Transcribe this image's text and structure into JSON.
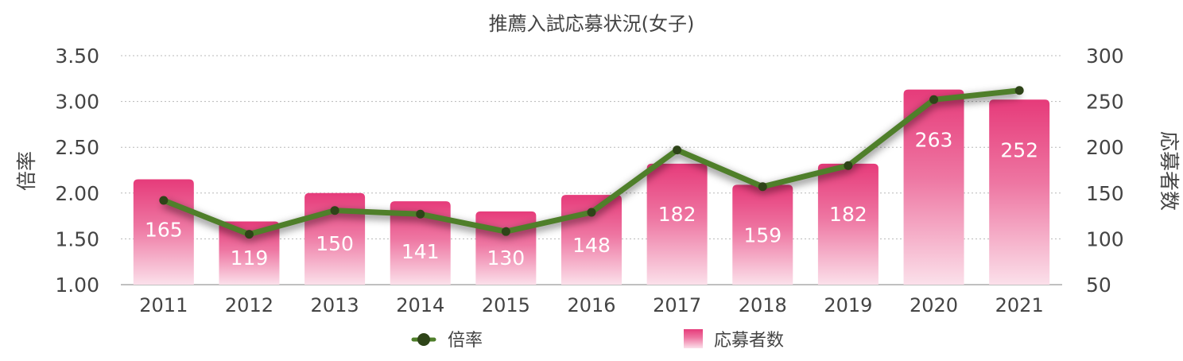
{
  "chart_data": {
    "type": "bar",
    "title": "推薦入試応募状況(女子)",
    "categories": [
      "2011",
      "2012",
      "2013",
      "2014",
      "2015",
      "2016",
      "2017",
      "2018",
      "2019",
      "2020",
      "2021"
    ],
    "series": [
      {
        "name": "応募者数",
        "type": "bar",
        "axis": "right",
        "color": "#e8457f",
        "values": [
          165,
          119,
          150,
          141,
          130,
          148,
          182,
          159,
          182,
          263,
          252
        ]
      },
      {
        "name": "倍率",
        "type": "line",
        "axis": "left",
        "color": "#4f7f2a",
        "marker_color": "#2e4418",
        "values": [
          1.92,
          1.55,
          1.81,
          1.77,
          1.58,
          1.79,
          2.47,
          2.07,
          2.3,
          3.02,
          3.12
        ]
      }
    ],
    "y_left": {
      "label": "倍率",
      "ylim": [
        1.0,
        3.5
      ],
      "ticks": [
        "1.00",
        "1.50",
        "2.00",
        "2.50",
        "3.00",
        "3.50"
      ]
    },
    "y_right": {
      "label": "応募者数",
      "ylim": [
        50,
        300
      ],
      "ticks": [
        "50",
        "100",
        "150",
        "200",
        "250",
        "300"
      ]
    },
    "grid": true,
    "legend": "bottom"
  }
}
